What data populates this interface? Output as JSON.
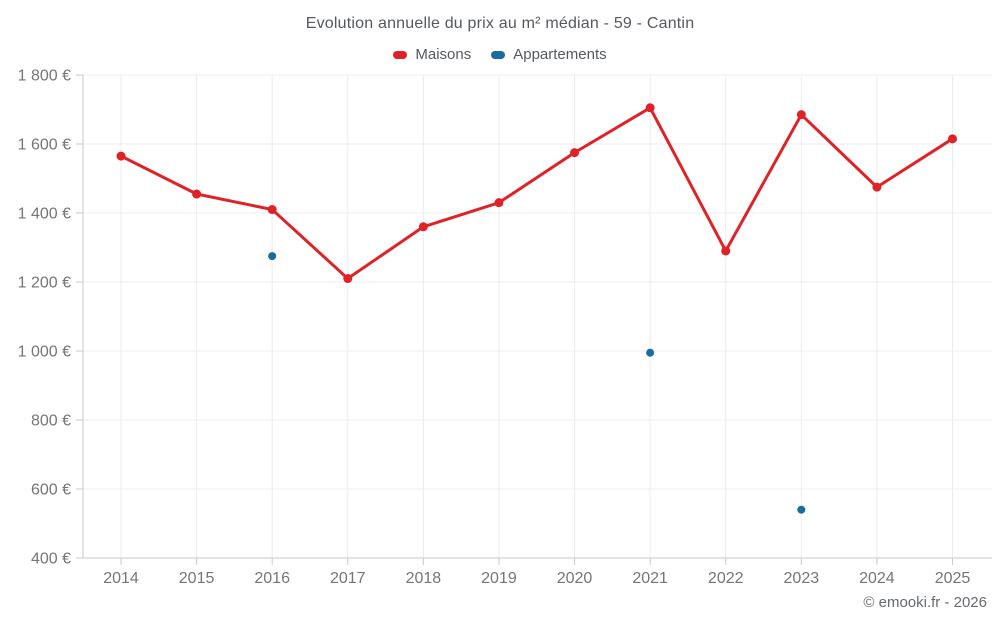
{
  "title": "Evolution annuelle du prix au m² médian - 59 - Cantin",
  "legend": [
    {
      "label": "Maisons",
      "color": "#e02227"
    },
    {
      "label": "Appartements",
      "color": "#1c6b9e"
    }
  ],
  "footer": "© emooki.fr - 2026",
  "colors": {
    "maisons": "#e02227",
    "appartements": "#1c6b9e",
    "grid": "#ececec",
    "axis": "#c9c9c9",
    "tick_label": "#757575",
    "title_text": "#55595e"
  },
  "chart_data": {
    "type": "line",
    "title": "Evolution annuelle du prix au m² médian - 59 - Cantin",
    "xlabel": "",
    "ylabel": "",
    "x": [
      "2014",
      "2015",
      "2016",
      "2017",
      "2018",
      "2019",
      "2020",
      "2021",
      "2022",
      "2023",
      "2024",
      "2025"
    ],
    "series": [
      {
        "name": "Maisons",
        "type": "line",
        "color": "#e02227",
        "values": [
          1565,
          1455,
          1410,
          1210,
          1360,
          1430,
          1575,
          1705,
          1290,
          1685,
          1475,
          1615
        ]
      },
      {
        "name": "Appartements",
        "type": "scatter",
        "color": "#1c6b9e",
        "points": [
          {
            "x": "2016",
            "y": 1275
          },
          {
            "x": "2021",
            "y": 995
          },
          {
            "x": "2023",
            "y": 540
          }
        ]
      }
    ],
    "ylim": [
      400,
      1800
    ],
    "yticks": [
      {
        "value": 400,
        "label": "400 €"
      },
      {
        "value": 600,
        "label": "600 €"
      },
      {
        "value": 800,
        "label": "800 €"
      },
      {
        "value": 1000,
        "label": "1 000 €"
      },
      {
        "value": 1200,
        "label": "1 200 €"
      },
      {
        "value": 1400,
        "label": "1 400 €"
      },
      {
        "value": 1600,
        "label": "1 600 €"
      },
      {
        "value": 1800,
        "label": "1 800 €"
      }
    ],
    "grid": true,
    "legend_position": "top"
  }
}
